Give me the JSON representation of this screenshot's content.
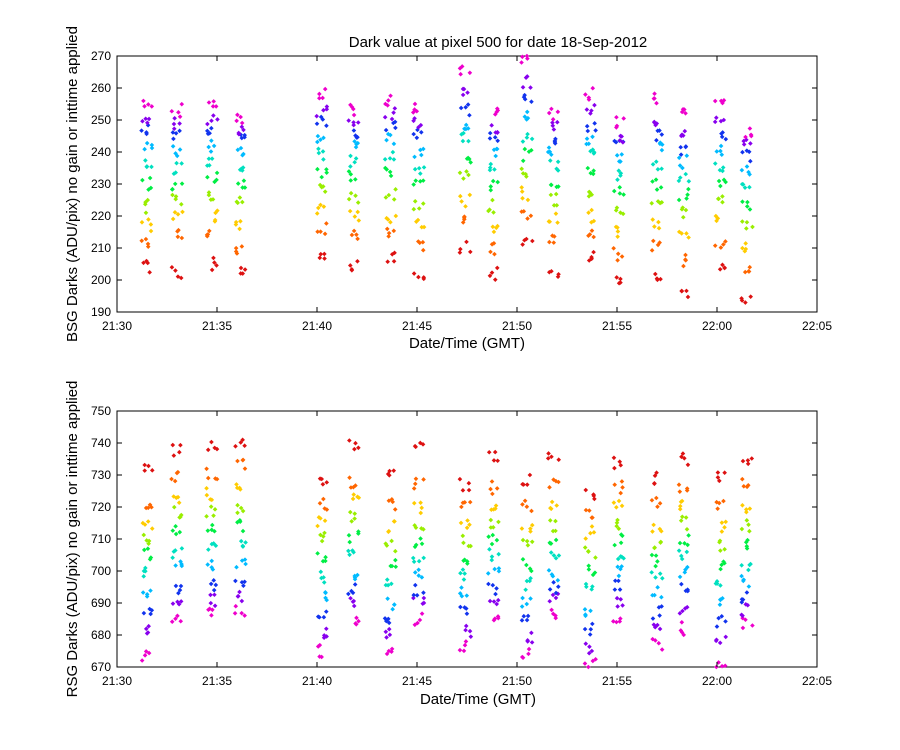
{
  "chart_data": [
    {
      "type": "scatter",
      "title": "Dark value at pixel 500 for date 18-Sep-2012",
      "xlabel": "Date/Time (GMT)",
      "ylabel": "BSG Darks (ADU/pix) no gain or inttime applied",
      "xlim": [
        "21:30",
        "22:05"
      ],
      "ylim": [
        190,
        270
      ],
      "x_ticks": [
        "21:30",
        "21:35",
        "21:40",
        "21:45",
        "21:50",
        "21:55",
        "22:00",
        "22:05"
      ],
      "y_ticks": [
        190,
        200,
        210,
        220,
        230,
        240,
        250,
        260,
        270
      ],
      "grid": false,
      "legend": "none",
      "color_order_low_to_high": [
        "#dd1111",
        "#ff6600",
        "#ffcc00",
        "#99ee00",
        "#00ee44",
        "#00e0c0",
        "#00bbff",
        "#1133ee",
        "#8800ee",
        "#ee00cc"
      ],
      "groups": [
        {
          "time": "21:31:30",
          "values": [
            204,
            211,
            217,
            223,
            230,
            237,
            242,
            247,
            250,
            254
          ]
        },
        {
          "time": "21:33:00",
          "values": [
            202,
            214,
            220,
            225,
            230,
            235,
            240,
            245,
            249,
            253
          ]
        },
        {
          "time": "21:34:45",
          "values": [
            205,
            214,
            220,
            226,
            232,
            237,
            242,
            246,
            250,
            255
          ]
        },
        {
          "time": "21:36:10",
          "values": [
            203,
            210,
            217,
            224,
            230,
            235,
            240,
            244,
            247,
            251
          ]
        },
        {
          "time": "21:40:15",
          "values": [
            208,
            216,
            222,
            228,
            233,
            239,
            244,
            249,
            253,
            258
          ]
        },
        {
          "time": "21:41:50",
          "values": [
            204,
            214,
            220,
            226,
            232,
            237,
            242,
            246,
            250,
            253
          ]
        },
        {
          "time": "21:43:40",
          "values": [
            207,
            214,
            220,
            227,
            233,
            239,
            244,
            248,
            252,
            256
          ]
        },
        {
          "time": "21:45:05",
          "values": [
            202,
            211,
            218,
            224,
            230,
            235,
            240,
            245,
            249,
            254
          ]
        },
        {
          "time": "21:47:25",
          "values": [
            210,
            218,
            225,
            232,
            238,
            244,
            249,
            253,
            258,
            265
          ]
        },
        {
          "time": "21:48:50",
          "values": [
            202,
            210,
            217,
            223,
            229,
            235,
            240,
            244,
            248,
            252
          ]
        },
        {
          "time": "21:50:30",
          "values": [
            213,
            220,
            227,
            233,
            239,
            245,
            251,
            256,
            262,
            269
          ]
        },
        {
          "time": "21:51:50",
          "values": [
            201,
            212,
            219,
            225,
            231,
            236,
            240,
            244,
            248,
            252
          ]
        },
        {
          "time": "21:53:40",
          "values": [
            207,
            214,
            220,
            227,
            233,
            239,
            244,
            248,
            253,
            258
          ]
        },
        {
          "time": "21:55:05",
          "values": [
            200,
            208,
            215,
            222,
            228,
            233,
            238,
            242,
            245,
            249
          ]
        },
        {
          "time": "21:57:00",
          "values": [
            202,
            211,
            218,
            224,
            230,
            236,
            241,
            245,
            249,
            257
          ]
        },
        {
          "time": "21:58:20",
          "values": [
            196,
            206,
            214,
            221,
            227,
            232,
            237,
            241,
            245,
            253
          ]
        },
        {
          "time": "22:00:10",
          "values": [
            205,
            212,
            219,
            225,
            231,
            236,
            241,
            245,
            249,
            255
          ]
        },
        {
          "time": "22:01:30",
          "values": [
            194,
            204,
            211,
            218,
            224,
            230,
            235,
            239,
            242,
            246
          ]
        }
      ]
    },
    {
      "type": "scatter",
      "title": "",
      "xlabel": "Date/Time (GMT)",
      "ylabel": "RSG Darks (ADU/pix) no gain or inttime applied",
      "xlim": [
        "21:30",
        "22:05"
      ],
      "ylim": [
        670,
        750
      ],
      "x_ticks": [
        "21:30",
        "21:35",
        "21:40",
        "21:45",
        "21:50",
        "21:55",
        "22:00",
        "22:05"
      ],
      "y_ticks": [
        670,
        680,
        690,
        700,
        710,
        720,
        730,
        740,
        750
      ],
      "grid": false,
      "legend": "none",
      "color_order_low_to_high": [
        "#ee00cc",
        "#8800ee",
        "#1133ee",
        "#00bbff",
        "#00e0c0",
        "#00ee44",
        "#99ee00",
        "#ffcc00",
        "#ff6600",
        "#dd1111"
      ],
      "groups": [
        {
          "time": "21:31:30",
          "values": [
            674,
            682,
            688,
            694,
            700,
            705,
            710,
            715,
            721,
            732
          ]
        },
        {
          "time": "21:33:00",
          "values": [
            686,
            690,
            695,
            701,
            706,
            712,
            718,
            723,
            730,
            738
          ]
        },
        {
          "time": "21:34:45",
          "values": [
            687,
            691,
            696,
            702,
            707,
            713,
            719,
            724,
            730,
            739
          ]
        },
        {
          "time": "21:36:10",
          "values": [
            688,
            692,
            697,
            702,
            708,
            714,
            720,
            726,
            733,
            740
          ]
        },
        {
          "time": "21:40:15",
          "values": [
            675,
            680,
            686,
            692,
            698,
            704,
            710,
            716,
            721,
            727
          ]
        },
        {
          "time": "21:41:50",
          "values": [
            685,
            690,
            694,
            699,
            705,
            711,
            717,
            722,
            728,
            739
          ]
        },
        {
          "time": "21:43:40",
          "values": [
            675,
            680,
            685,
            690,
            696,
            702,
            708,
            714,
            721,
            731
          ]
        },
        {
          "time": "21:45:05",
          "values": [
            685,
            690,
            694,
            699,
            704,
            709,
            714,
            720,
            727,
            739
          ]
        },
        {
          "time": "21:47:25",
          "values": [
            676,
            681,
            687,
            693,
            699,
            704,
            709,
            714,
            720,
            727
          ]
        },
        {
          "time": "21:48:50",
          "values": [
            686,
            690,
            694,
            699,
            705,
            710,
            715,
            720,
            726,
            736
          ]
        },
        {
          "time": "21:50:30",
          "values": [
            674,
            679,
            684,
            690,
            696,
            702,
            708,
            714,
            720,
            728
          ]
        },
        {
          "time": "21:51:50",
          "values": [
            687,
            691,
            695,
            699,
            704,
            709,
            714,
            720,
            727,
            736
          ]
        },
        {
          "time": "21:53:40",
          "values": [
            671,
            676,
            682,
            688,
            694,
            700,
            706,
            712,
            718,
            724
          ]
        },
        {
          "time": "21:55:05",
          "values": [
            685,
            690,
            695,
            700,
            705,
            710,
            715,
            720,
            726,
            734
          ]
        },
        {
          "time": "21:57:00",
          "values": [
            677,
            682,
            687,
            693,
            698,
            703,
            708,
            714,
            721,
            729
          ]
        },
        {
          "time": "21:58:20",
          "values": [
            682,
            688,
            694,
            700,
            705,
            710,
            715,
            720,
            726,
            735
          ]
        },
        {
          "time": "22:00:10",
          "values": [
            671,
            678,
            684,
            690,
            696,
            702,
            708,
            714,
            721,
            729
          ]
        },
        {
          "time": "22:01:30",
          "values": [
            684,
            688,
            692,
            697,
            702,
            708,
            714,
            720,
            727,
            735
          ]
        }
      ]
    }
  ]
}
